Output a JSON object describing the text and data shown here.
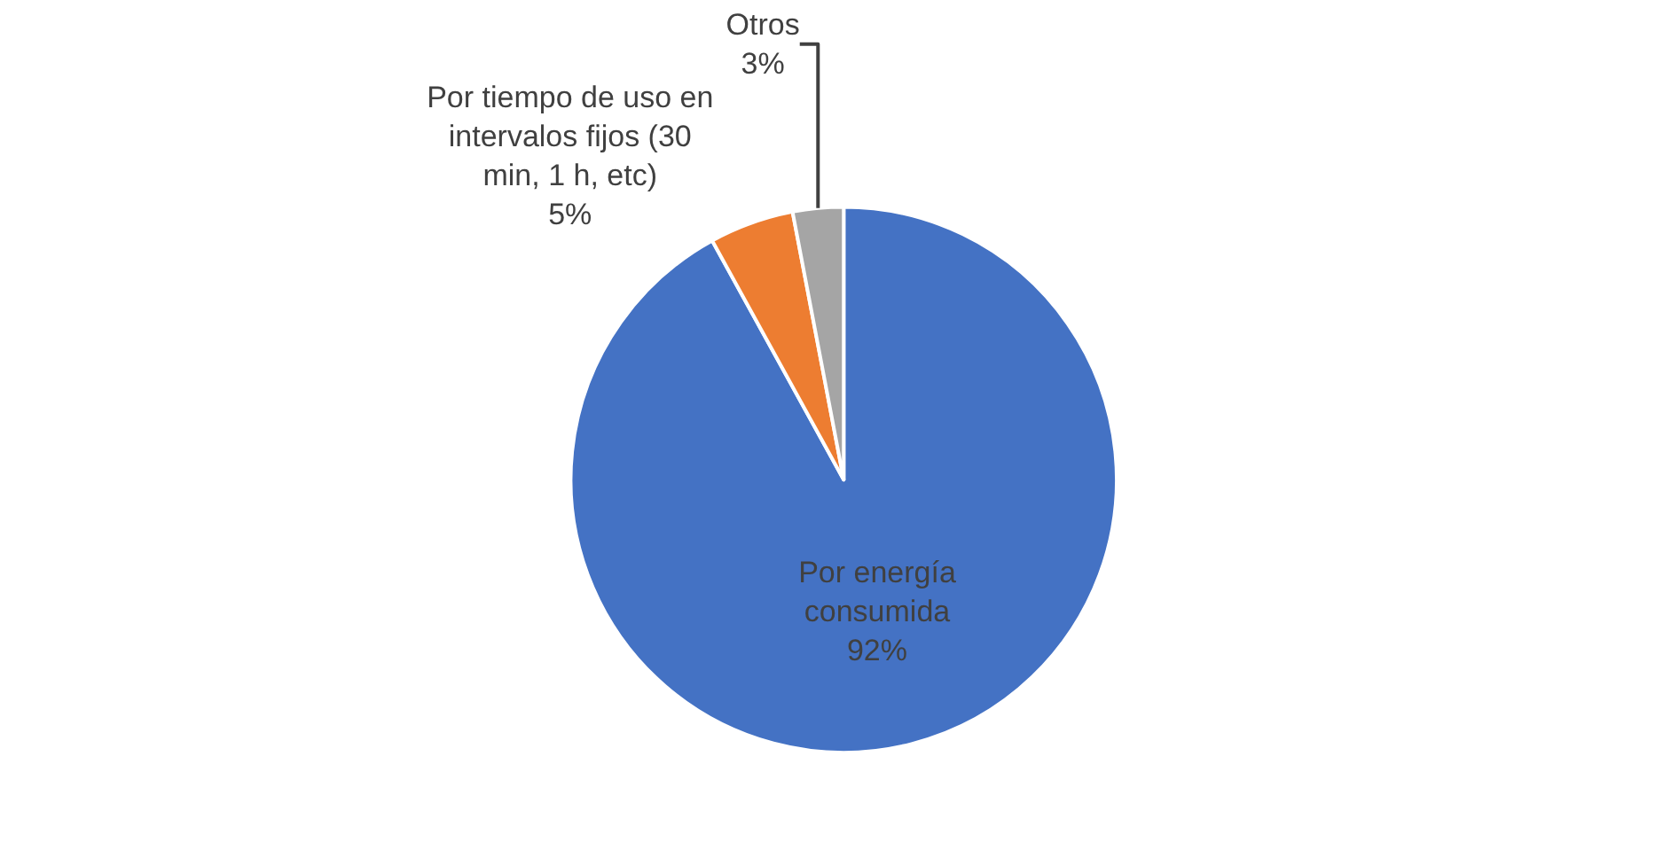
{
  "chart_data": {
    "type": "pie",
    "categories": [
      "Por energía consumida",
      "Por tiempo de uso en intervalos fijos (30 min, 1 h, etc)",
      "Otros"
    ],
    "values": [
      92,
      5,
      3
    ],
    "colors": [
      "#4472c4",
      "#ed7d31",
      "#a5a5a5"
    ],
    "value_labels": [
      "92%",
      "5%",
      "3%"
    ],
    "legend": false
  }
}
